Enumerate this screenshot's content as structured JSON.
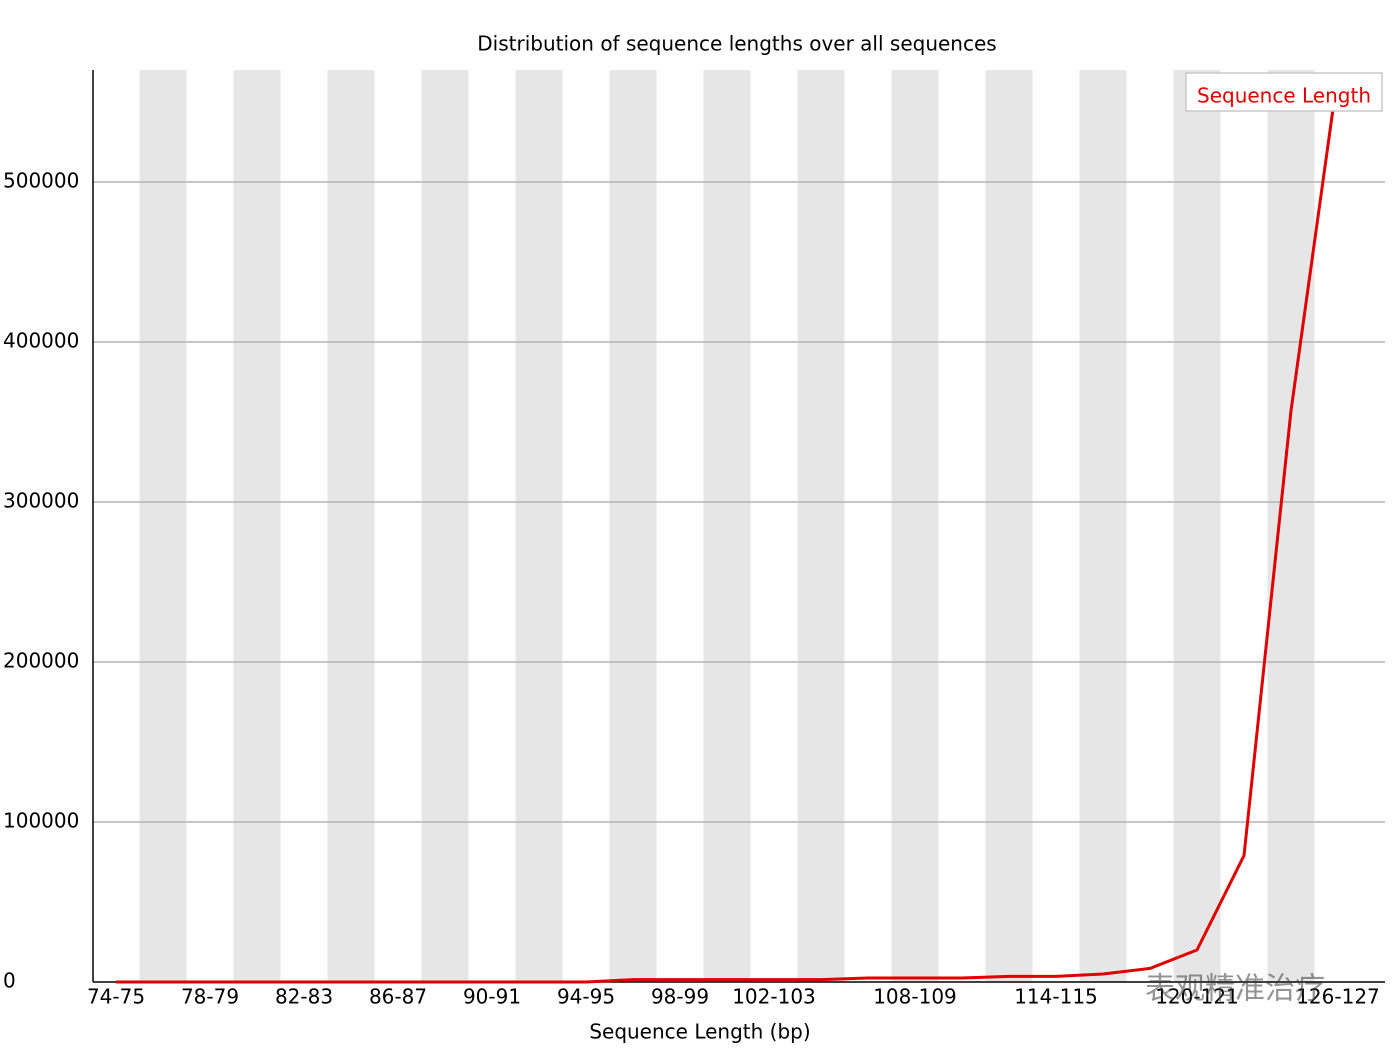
{
  "chart_data": {
    "type": "line",
    "title": "Distribution of sequence lengths over all sequences",
    "x_label": "Sequence Length (bp)",
    "categories": [
      "74-75",
      null,
      "78-79",
      null,
      "82-83",
      null,
      "86-87",
      null,
      "90-91",
      null,
      "94-95",
      null,
      "98-99",
      null,
      "102-103",
      null,
      null,
      "108-109",
      null,
      null,
      "114-115",
      null,
      null,
      "120-121",
      null,
      null,
      "126-127"
    ],
    "series": [
      {
        "name": "Sequence Length",
        "color": "#e00000",
        "values": [
          0,
          0,
          0,
          0,
          0,
          0,
          0,
          0,
          0,
          0,
          0,
          1500,
          1500,
          1500,
          1500,
          1500,
          2500,
          2500,
          2500,
          3500,
          3500,
          5000,
          8500,
          20000,
          79000,
          357000,
          568000
        ]
      }
    ],
    "ylim": [
      0,
      570000
    ],
    "yticks": [
      0,
      100000,
      200000,
      300000,
      400000,
      500000
    ],
    "grid": true,
    "legend": "top-right",
    "watermark": "表观精准治疗"
  }
}
